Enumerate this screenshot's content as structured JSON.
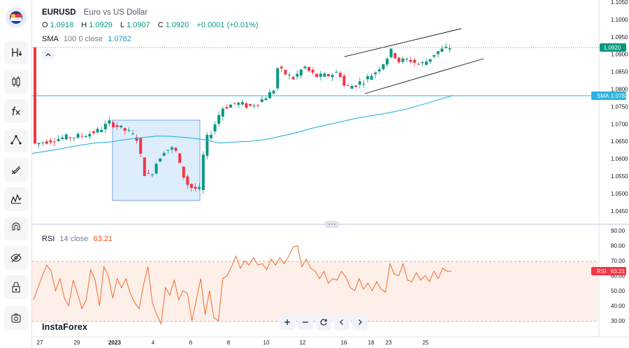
{
  "symbol": "EURUSD",
  "description": "Euro vs US Dollar",
  "ohlc": {
    "o_label": "O",
    "o": "1.0918",
    "h_label": "H",
    "h": "1.0929",
    "l_label": "L",
    "l": "1.0907",
    "c_label": "C",
    "c": "1.0920",
    "change": "+0.0001 (+0.01%)"
  },
  "sma_legend": {
    "name": "SMA",
    "params": "100 0 close",
    "value": "1.0782"
  },
  "rsi_legend": {
    "name": "RSI",
    "params": "14 close",
    "value": "63.21"
  },
  "brand": "InstaForex",
  "price_tags": {
    "last": "1.0920",
    "sma_label": "SMA",
    "sma": "1.0782",
    "rsi_label": "RSI",
    "rsi": "63.21"
  },
  "colors": {
    "up": "#089981",
    "down": "#f23645",
    "sma": "#2ab4e0",
    "rsi": "#f26b2a",
    "rsi_band": "#fdeae2",
    "box": "#cfe5fb",
    "box_border": "#2962ff",
    "channel": "#131722"
  },
  "sidebar_icons": [
    "flag-eu-icon",
    "text-h-icon",
    "candles-icon",
    "fx-icon",
    "shapes-icon",
    "brush-icon",
    "patterns-icon",
    "magnet-icon",
    "eye-off-icon",
    "lock-icon",
    "camera-icon"
  ],
  "toolbar_icons": [
    "zoom-in-icon",
    "zoom-out-icon",
    "reset-icon",
    "scroll-left-icon",
    "scroll-right-icon"
  ],
  "chart_data": {
    "type": "candlestick",
    "price_axis": {
      "ticks": [
        "1.1050",
        "1.1000",
        "1.0950",
        "1.0900",
        "1.0850",
        "1.0800",
        "1.0750",
        "1.0700",
        "1.0650",
        "1.0600",
        "1.0550",
        "1.0500",
        "1.0450"
      ],
      "range": [
        1.04,
        1.107
      ]
    },
    "rsi_axis": {
      "ticks": [
        "90.00",
        "80.00",
        "70.00",
        "60.00",
        "50.00",
        "40.00",
        "30.00"
      ],
      "range": [
        26,
        92
      ],
      "bands": [
        30,
        70
      ]
    },
    "time_axis": {
      "ticks": [
        "27",
        "29",
        "2023",
        "4",
        "6",
        "8",
        "10",
        "12",
        "16",
        "18",
        "23",
        "25"
      ]
    },
    "sma_series": [
      1.0615,
      1.0622,
      1.063,
      1.0638,
      1.0645,
      1.0648,
      1.0655,
      1.066,
      1.0665,
      1.0664,
      1.066,
      1.0655,
      1.0645,
      1.0648,
      1.065,
      1.0655,
      1.0665,
      1.0675,
      1.0688,
      1.0698,
      1.0708,
      1.0718,
      1.0725,
      1.0733,
      1.0742,
      1.0755,
      1.0768,
      1.0782
    ],
    "rsi_series": [
      44,
      52,
      60,
      67,
      63,
      50,
      58,
      45,
      40,
      57,
      48,
      38,
      44,
      64,
      57,
      40,
      66,
      60,
      45,
      58,
      52,
      58,
      48,
      42,
      38,
      54,
      66,
      42,
      34,
      28,
      52,
      47,
      57,
      44,
      50,
      48,
      30,
      44,
      58,
      34,
      50,
      32,
      30,
      58,
      60,
      66,
      73,
      65,
      70,
      67,
      72,
      67,
      68,
      64,
      71,
      67,
      72,
      68,
      73,
      79,
      80,
      66,
      71,
      65,
      63,
      58,
      63,
      55,
      58,
      57,
      63,
      59,
      52,
      50,
      58,
      51,
      55,
      50,
      56,
      51,
      49,
      68,
      61,
      60,
      68,
      57,
      56,
      62,
      57,
      60,
      56,
      63,
      58,
      65,
      63,
      63
    ]
  }
}
